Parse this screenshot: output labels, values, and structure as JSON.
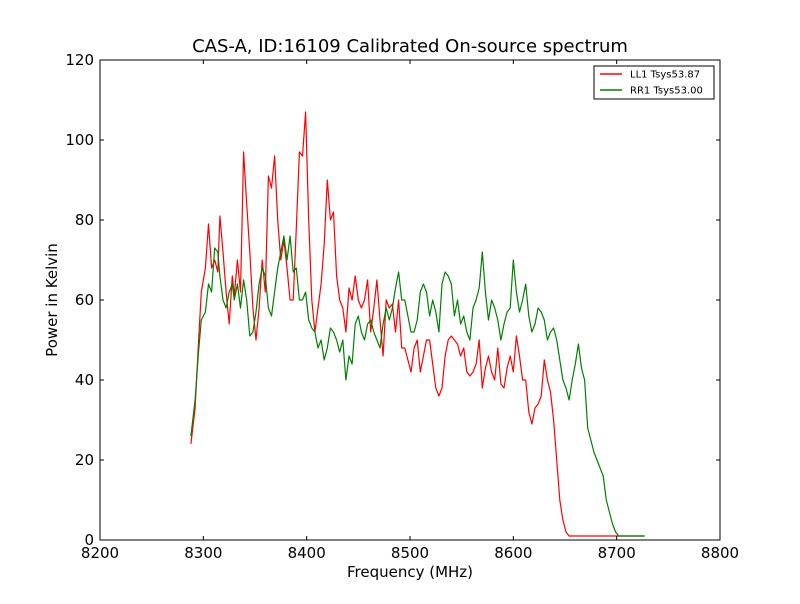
{
  "chart_data": {
    "type": "line",
    "title": "CAS-A, ID:16109 Calibrated On-source spectrum",
    "xlabel": "Frequency (MHz)",
    "ylabel": "Power in Kelvin",
    "xlim": [
      8200,
      8800
    ],
    "ylim": [
      0,
      120
    ],
    "xticks": [
      8200,
      8300,
      8400,
      8500,
      8600,
      8700,
      8800
    ],
    "yticks": [
      0,
      20,
      40,
      60,
      80,
      100,
      120
    ],
    "grid": false,
    "legend_position": "top-right",
    "series": [
      {
        "name": "LL1 Tsys53.87",
        "color": "#ff0000",
        "x": [
          8288,
          8292,
          8295,
          8298,
          8302,
          8305,
          8308,
          8311,
          8314,
          8316,
          8319,
          8322,
          8325,
          8328,
          8330,
          8333,
          8336,
          8339,
          8342,
          8345,
          8348,
          8351,
          8354,
          8357,
          8360,
          8363,
          8366,
          8369,
          8372,
          8375,
          8378,
          8381,
          8384,
          8387,
          8390,
          8393,
          8396,
          8399,
          8402,
          8405,
          8408,
          8411,
          8414,
          8417,
          8420,
          8423,
          8426,
          8429,
          8432,
          8435,
          8438,
          8441,
          8444,
          8447,
          8450,
          8453,
          8456,
          8459,
          8462,
          8465,
          8468,
          8471,
          8474,
          8477,
          8480,
          8483,
          8486,
          8489,
          8492,
          8495,
          8498,
          8501,
          8504,
          8507,
          8510,
          8513,
          8516,
          8519,
          8522,
          8525,
          8528,
          8531,
          8534,
          8537,
          8540,
          8543,
          8546,
          8549,
          8552,
          8555,
          8558,
          8561,
          8564,
          8567,
          8570,
          8573,
          8576,
          8579,
          8582,
          8585,
          8588,
          8591,
          8594,
          8597,
          8600,
          8603,
          8606,
          8609,
          8612,
          8615,
          8618,
          8621,
          8624,
          8627,
          8630,
          8633,
          8636,
          8639,
          8642,
          8645,
          8648,
          8651,
          8654,
          8657,
          8660,
          8663,
          8666,
          8669,
          8672,
          8675,
          8678,
          8681,
          8684,
          8687,
          8690,
          8693,
          8696,
          8699,
          8702,
          8705,
          8708,
          8711,
          8714,
          8717,
          8720,
          8724,
          8727
        ],
        "y": [
          24,
          33,
          48,
          62,
          68,
          79,
          68,
          70,
          67,
          81,
          72,
          62,
          54,
          66,
          61,
          70,
          62,
          97,
          84,
          72,
          58,
          50,
          58,
          70,
          62,
          91,
          88,
          96,
          80,
          70,
          75,
          68,
          60,
          60,
          78,
          97,
          96,
          107,
          80,
          60,
          52,
          58,
          64,
          74,
          90,
          80,
          82,
          66,
          60,
          58,
          52,
          63,
          60,
          66,
          60,
          58,
          60,
          65,
          52,
          58,
          65,
          55,
          46,
          60,
          58,
          59,
          52,
          60,
          48,
          48,
          45,
          42,
          48,
          50,
          42,
          46,
          50,
          50,
          44,
          38,
          36,
          38,
          46,
          50,
          51,
          50,
          49,
          46,
          48,
          42,
          41,
          42,
          44,
          50,
          38,
          43,
          46,
          42,
          40,
          48,
          39,
          38,
          43,
          46,
          42,
          51,
          46,
          40,
          40,
          32,
          29,
          33,
          34,
          36,
          45,
          40,
          37,
          30,
          20,
          10,
          5,
          2,
          1,
          1,
          1,
          1,
          1,
          1,
          1,
          1,
          1,
          1,
          1,
          1,
          1,
          1,
          1,
          1,
          1,
          1,
          1,
          1,
          1,
          1,
          1,
          1,
          1
        ],
        "note": ""
      },
      {
        "name": "RR1 Tsys53.00",
        "color": "#008000",
        "x": [
          8288,
          8292,
          8295,
          8298,
          8302,
          8305,
          8308,
          8311,
          8314,
          8316,
          8319,
          8322,
          8325,
          8328,
          8330,
          8333,
          8336,
          8339,
          8342,
          8345,
          8348,
          8351,
          8354,
          8357,
          8360,
          8363,
          8366,
          8369,
          8372,
          8375,
          8378,
          8381,
          8384,
          8387,
          8390,
          8393,
          8396,
          8399,
          8402,
          8405,
          8408,
          8411,
          8414,
          8417,
          8420,
          8423,
          8426,
          8429,
          8432,
          8435,
          8438,
          8441,
          8444,
          8447,
          8450,
          8453,
          8456,
          8459,
          8462,
          8465,
          8468,
          8471,
          8474,
          8477,
          8480,
          8483,
          8486,
          8489,
          8492,
          8495,
          8498,
          8501,
          8504,
          8507,
          8510,
          8513,
          8516,
          8519,
          8522,
          8525,
          8528,
          8531,
          8534,
          8537,
          8540,
          8543,
          8546,
          8549,
          8552,
          8555,
          8558,
          8561,
          8564,
          8567,
          8570,
          8573,
          8576,
          8579,
          8582,
          8585,
          8588,
          8591,
          8594,
          8597,
          8600,
          8603,
          8606,
          8609,
          8612,
          8615,
          8618,
          8621,
          8624,
          8627,
          8630,
          8633,
          8636,
          8639,
          8642,
          8645,
          8648,
          8651,
          8654,
          8657,
          8660,
          8663,
          8666,
          8669,
          8672,
          8675,
          8678,
          8681,
          8684,
          8687,
          8690,
          8693,
          8696,
          8699,
          8702,
          8705,
          8708,
          8711,
          8714,
          8717,
          8720,
          8724,
          8727
        ],
        "y": [
          26,
          35,
          46,
          55,
          57,
          64,
          62,
          73,
          72,
          66,
          60,
          58,
          62,
          64,
          60,
          64,
          58,
          65,
          60,
          51,
          52,
          57,
          64,
          68,
          66,
          58,
          56,
          62,
          68,
          72,
          76,
          70,
          76,
          67,
          68,
          60,
          60,
          62,
          55,
          53,
          52,
          48,
          50,
          45,
          48,
          53,
          52,
          50,
          47,
          50,
          40,
          46,
          44,
          54,
          56,
          52,
          50,
          54,
          55,
          52,
          50,
          48,
          54,
          58,
          55,
          58,
          63,
          67,
          60,
          60,
          56,
          52,
          52,
          55,
          62,
          64,
          62,
          56,
          60,
          57,
          52,
          64,
          67,
          66,
          64,
          56,
          60,
          54,
          56,
          52,
          50,
          58,
          60,
          63,
          72,
          62,
          55,
          60,
          58,
          55,
          50,
          54,
          57,
          58,
          70,
          62,
          57,
          60,
          64,
          56,
          52,
          54,
          58,
          57,
          55,
          50,
          52,
          53,
          50,
          45,
          40,
          38,
          35,
          40,
          44,
          49,
          43,
          40,
          28,
          25,
          22,
          20,
          18,
          16,
          10,
          7,
          4,
          2,
          1,
          1,
          1,
          1,
          1,
          1,
          1,
          1,
          1
        ],
        "note": ""
      }
    ]
  }
}
